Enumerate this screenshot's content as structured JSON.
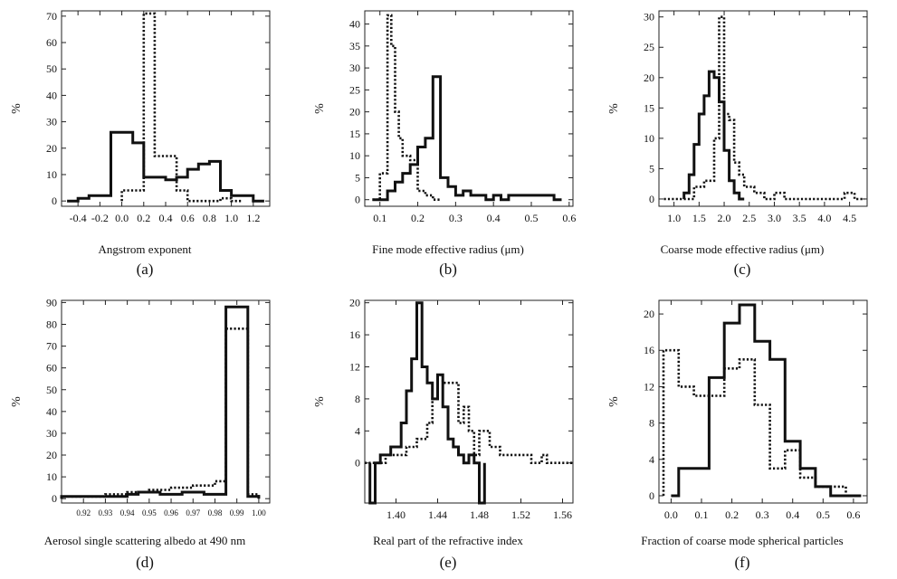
{
  "chart_data": [
    {
      "type": "bar",
      "panel_label": "(a)",
      "xlabel": "Angstrom exponent",
      "ylabel": "%",
      "xlim": [
        -0.55,
        1.35
      ],
      "ylim": [
        -2,
        72
      ],
      "xticks": [
        -0.4,
        -0.2,
        0.0,
        0.2,
        0.4,
        0.6,
        0.8,
        1.0,
        1.2
      ],
      "xtick_labels": [
        "-0.4",
        "-0.2",
        "0.0",
        "0.2",
        "0.4",
        "0.6",
        "0.8",
        "1.0",
        "1.2"
      ],
      "yticks": [
        0,
        10,
        20,
        30,
        40,
        50,
        60,
        70
      ],
      "series": [
        {
          "style": "solid",
          "edges": [
            -0.5,
            -0.4,
            -0.3,
            -0.2,
            -0.1,
            0.0,
            0.1,
            0.2,
            0.3,
            0.4,
            0.5,
            0.6,
            0.7,
            0.8,
            0.9,
            1.0,
            1.1,
            1.2,
            1.3
          ],
          "values": [
            0,
            1,
            2,
            2,
            26,
            26,
            22,
            9,
            9,
            8,
            9,
            12,
            14,
            15,
            4,
            2,
            2,
            0
          ]
        },
        {
          "style": "dotted",
          "edges": [
            0.0,
            0.1,
            0.2,
            0.3,
            0.4,
            0.5,
            0.6,
            0.7,
            0.8,
            0.9,
            1.0,
            1.1
          ],
          "values": [
            4,
            4,
            71,
            17,
            17,
            4,
            0,
            0,
            0,
            1,
            0
          ]
        }
      ]
    },
    {
      "type": "bar",
      "panel_label": "(b)",
      "xlabel": "Fine mode effective radius (μm)",
      "ylabel": "%",
      "xlim": [
        0.06,
        0.61
      ],
      "ylim": [
        -1.5,
        43
      ],
      "xticks": [
        0.1,
        0.2,
        0.3,
        0.4,
        0.5,
        0.6
      ],
      "xtick_labels": [
        "0.1",
        "0.2",
        "0.3",
        "0.4",
        "0.5",
        "0.6"
      ],
      "yticks": [
        0,
        5,
        10,
        15,
        20,
        25,
        30,
        35,
        40
      ],
      "series": [
        {
          "style": "solid",
          "edges": [
            0.08,
            0.1,
            0.12,
            0.14,
            0.16,
            0.18,
            0.2,
            0.22,
            0.24,
            0.26,
            0.28,
            0.3,
            0.32,
            0.34,
            0.36,
            0.38,
            0.4,
            0.42,
            0.44,
            0.46,
            0.48,
            0.5,
            0.52,
            0.54,
            0.56,
            0.58
          ],
          "values": [
            0,
            0,
            2,
            4,
            6,
            8,
            12,
            14,
            28,
            5,
            3,
            1,
            2,
            1,
            1,
            0,
            1,
            0,
            1,
            1,
            1,
            1,
            1,
            1,
            0
          ]
        },
        {
          "style": "dotted",
          "edges": [
            0.08,
            0.1,
            0.12,
            0.13,
            0.14,
            0.15,
            0.16,
            0.18,
            0.2,
            0.22,
            0.24,
            0.26
          ],
          "values": [
            0,
            6,
            42,
            35,
            20,
            14,
            10,
            9,
            2,
            1,
            0
          ]
        }
      ]
    },
    {
      "type": "bar",
      "panel_label": "(c)",
      "xlabel": "Coarse mode effective radius (μm)",
      "ylabel": "%",
      "xlim": [
        0.7,
        4.85
      ],
      "ylim": [
        -1.2,
        31
      ],
      "xticks": [
        1.0,
        1.5,
        2.0,
        2.5,
        3.0,
        3.5,
        4.0,
        4.5
      ],
      "xtick_labels": [
        "1.0",
        "1.5",
        "2.0",
        "2.5",
        "3.0",
        "3.5",
        "4.0",
        "4.5"
      ],
      "yticks": [
        0,
        5,
        10,
        15,
        20,
        25,
        30
      ],
      "series": [
        {
          "style": "solid",
          "edges": [
            1.2,
            1.3,
            1.4,
            1.5,
            1.6,
            1.7,
            1.8,
            1.9,
            2.0,
            2.1,
            2.2,
            2.3,
            2.4
          ],
          "values": [
            1,
            4,
            9,
            14,
            17,
            21,
            20,
            16,
            8,
            3,
            1,
            0
          ]
        },
        {
          "style": "dotted",
          "edges": [
            0.8,
            1.2,
            1.4,
            1.6,
            1.8,
            1.9,
            2.0,
            2.1,
            2.2,
            2.3,
            2.4,
            2.6,
            2.8,
            3.0,
            3.2,
            4.4,
            4.6,
            4.8
          ],
          "values": [
            0,
            0,
            2,
            3,
            10,
            30,
            14,
            13,
            6,
            4,
            2,
            1,
            0,
            1,
            0,
            1,
            0
          ]
        }
      ]
    },
    {
      "type": "bar",
      "panel_label": "(d)",
      "xlabel": "Aerosol single scattering albedo at 490 nm",
      "ylabel": "%",
      "xlim": [
        0.91,
        1.005
      ],
      "ylim": [
        -2,
        91
      ],
      "xticks": [
        0.92,
        0.93,
        0.94,
        0.95,
        0.96,
        0.97,
        0.98,
        0.99,
        1.0
      ],
      "xtick_labels": [
        "0.92",
        "0.93",
        "0.94",
        "0.95",
        "0.96",
        "0.97",
        "0.98",
        "0.99",
        "1.00"
      ],
      "yticks": [
        0,
        10,
        20,
        30,
        40,
        50,
        60,
        70,
        80,
        90
      ],
      "series": [
        {
          "style": "solid",
          "edges": [
            0.91,
            0.92,
            0.93,
            0.94,
            0.945,
            0.955,
            0.965,
            0.975,
            0.985,
            0.995,
            1.0
          ],
          "values": [
            1,
            1,
            1,
            2,
            3,
            2,
            3,
            2,
            88,
            1
          ]
        },
        {
          "style": "dotted",
          "edges": [
            0.91,
            0.92,
            0.93,
            0.94,
            0.95,
            0.96,
            0.97,
            0.98,
            0.985,
            0.995,
            1.0
          ],
          "values": [
            1,
            1,
            2,
            3,
            4,
            5,
            6,
            8,
            78,
            2
          ]
        }
      ]
    },
    {
      "type": "bar",
      "panel_label": "(e)",
      "xlabel": "Real part of the refractive index",
      "ylabel": "%",
      "xlim": [
        1.37,
        1.57
      ],
      "ylim": [
        -5,
        20.3
      ],
      "xticks": [
        1.4,
        1.44,
        1.48,
        1.52,
        1.56
      ],
      "xtick_labels": [
        "1.40",
        "1.44",
        "1.48",
        "1.52",
        "1.56"
      ],
      "yticks": [
        0,
        4,
        8,
        12,
        16,
        20
      ],
      "series": [
        {
          "style": "solid",
          "edges": [
            1.375,
            1.38,
            1.385,
            1.395,
            1.405,
            1.41,
            1.415,
            1.42,
            1.425,
            1.43,
            1.435,
            1.44,
            1.445,
            1.45,
            1.455,
            1.46,
            1.465,
            1.47,
            1.475,
            1.48,
            1.485
          ],
          "values": [
            -5,
            0,
            1,
            2,
            5,
            9,
            13,
            20,
            12,
            10,
            8,
            11,
            7,
            3,
            2,
            1,
            0,
            1,
            0,
            -5
          ]
        },
        {
          "style": "dotted",
          "edges": [
            1.37,
            1.39,
            1.4,
            1.41,
            1.42,
            1.43,
            1.435,
            1.44,
            1.445,
            1.45,
            1.455,
            1.46,
            1.465,
            1.47,
            1.475,
            1.48,
            1.49,
            1.5,
            1.52,
            1.53,
            1.54,
            1.545,
            1.57
          ],
          "values": [
            0,
            1,
            1,
            2,
            3,
            5,
            8,
            11,
            10,
            10,
            10,
            5,
            7,
            4,
            1,
            4,
            2,
            1,
            1,
            0,
            1,
            0
          ]
        }
      ]
    },
    {
      "type": "bar",
      "panel_label": "(f)",
      "xlabel": "Fraction of coarse mode spherical particles",
      "ylabel": "%",
      "xlim": [
        -0.04,
        0.645
      ],
      "ylim": [
        -0.8,
        21.5
      ],
      "xticks": [
        0.0,
        0.1,
        0.2,
        0.3,
        0.4,
        0.5,
        0.6
      ],
      "xtick_labels": [
        "0.0",
        "0.1",
        "0.2",
        "0.3",
        "0.4",
        "0.5",
        "0.6"
      ],
      "yticks": [
        0,
        4,
        8,
        12,
        16,
        20
      ],
      "series": [
        {
          "style": "solid",
          "edges": [
            0.0,
            0.025,
            0.05,
            0.125,
            0.175,
            0.225,
            0.275,
            0.325,
            0.375,
            0.425,
            0.475,
            0.525,
            0.575,
            0.625
          ],
          "values": [
            0,
            3,
            3,
            13,
            19,
            21,
            17,
            15,
            6,
            3,
            1,
            0,
            0
          ]
        },
        {
          "style": "dotted",
          "edges": [
            -0.025,
            0.025,
            0.075,
            0.125,
            0.175,
            0.225,
            0.275,
            0.325,
            0.375,
            0.425,
            0.475,
            0.525,
            0.575,
            0.625
          ],
          "values": [
            16,
            12,
            11,
            11,
            14,
            15,
            10,
            3,
            5,
            2,
            1,
            1,
            0
          ]
        }
      ]
    }
  ]
}
